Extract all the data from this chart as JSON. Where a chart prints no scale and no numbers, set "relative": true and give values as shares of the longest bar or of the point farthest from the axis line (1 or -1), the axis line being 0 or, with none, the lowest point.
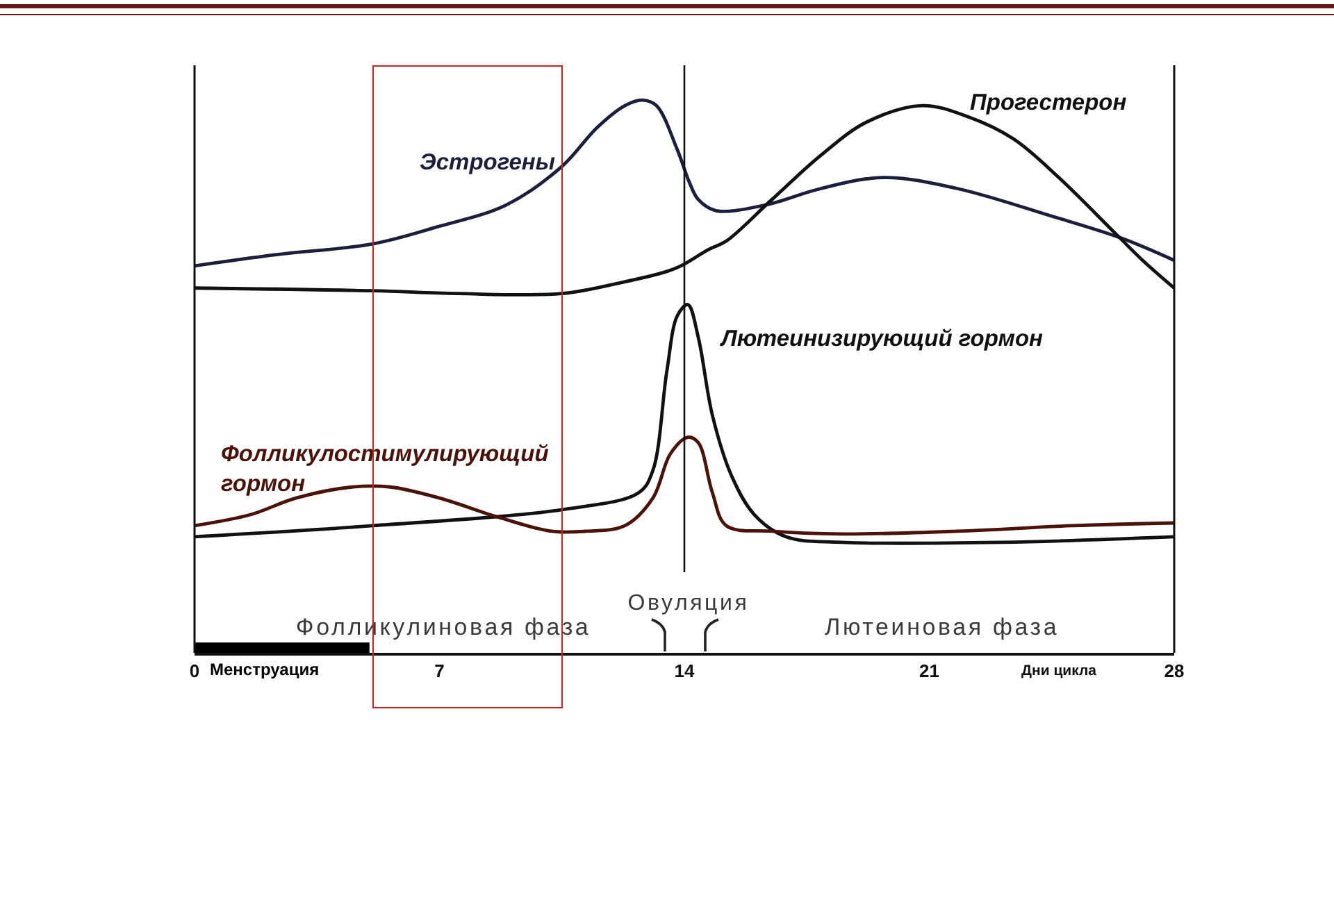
{
  "chart_data": {
    "type": "line",
    "relative": true,
    "xlim": [
      0,
      28
    ],
    "xticks": [
      0,
      7,
      14,
      21,
      28
    ],
    "xlabel": "Дни цикла",
    "tick_labels": "x",
    "grid": false,
    "legend": false,
    "series": [
      {
        "name": "Эстрогены",
        "color": "#1b1f3b",
        "x": [
          0,
          2.3,
          5.1,
          6.9,
          8.9,
          10.5,
          11.5,
          12.3,
          12.8,
          13.2,
          13.8,
          14.15,
          14.4,
          14.9,
          16.3,
          17.9,
          19.7,
          21.8,
          24.5,
          26.5,
          28
        ],
        "values": [
          0.7,
          0.72,
          0.74,
          0.77,
          0.81,
          0.88,
          0.95,
          0.99,
          1.0,
          0.99,
          0.91,
          0.85,
          0.82,
          0.8,
          0.81,
          0.84,
          0.86,
          0.84,
          0.79,
          0.75,
          0.71
        ]
      },
      {
        "name": "Прогестерон",
        "color": "#111111",
        "x": [
          0,
          5.1,
          7.5,
          10.5,
          12.2,
          13.5,
          13.9,
          14.7,
          15.2,
          16.5,
          17.9,
          19.2,
          20.8,
          22.1,
          23.4,
          24.7,
          26.3,
          27.1,
          28
        ],
        "values": [
          0.66,
          0.655,
          0.65,
          0.65,
          0.67,
          0.69,
          0.7,
          0.73,
          0.745,
          0.82,
          0.9,
          0.96,
          0.99,
          0.97,
          0.93,
          0.86,
          0.76,
          0.71,
          0.66
        ]
      },
      {
        "name": "Лютеинизирующий гормон",
        "color": "#111111",
        "x": [
          0,
          5.1,
          10.6,
          12.7,
          13.1,
          13.5,
          13.8,
          14.1,
          14.4,
          14.8,
          15.35,
          16.0,
          16.9,
          18.5,
          23.1,
          28
        ],
        "values": [
          0.21,
          0.23,
          0.26,
          0.29,
          0.33,
          0.51,
          0.61,
          0.63,
          0.57,
          0.43,
          0.32,
          0.25,
          0.21,
          0.2,
          0.2,
          0.21
        ]
      },
      {
        "name": "Фолликулостимулирующий гормон",
        "color": "#4a1208",
        "x": [
          0,
          1.6,
          2.9,
          4.5,
          5.6,
          7.0,
          8.7,
          10.2,
          11.2,
          12.3,
          13.1,
          13.6,
          14.1,
          14.4,
          14.8,
          15.2,
          16.5,
          18.5,
          21.8,
          25.1,
          28
        ],
        "values": [
          0.23,
          0.25,
          0.28,
          0.3,
          0.3,
          0.28,
          0.245,
          0.22,
          0.22,
          0.23,
          0.28,
          0.36,
          0.39,
          0.38,
          0.29,
          0.23,
          0.22,
          0.215,
          0.22,
          0.23,
          0.235
        ]
      },
      {
        "name": "Менструация",
        "type": "area",
        "color": "#000000",
        "x": [
          0,
          5
        ],
        "values": [
          0.018,
          0.018
        ]
      }
    ],
    "ref_lines": [
      {
        "axis": "x",
        "value": 14,
        "label": "Овуляция"
      }
    ],
    "annotations": [
      "Фолликулиновая фаза",
      "Лютеиновая фаза"
    ]
  }
}
